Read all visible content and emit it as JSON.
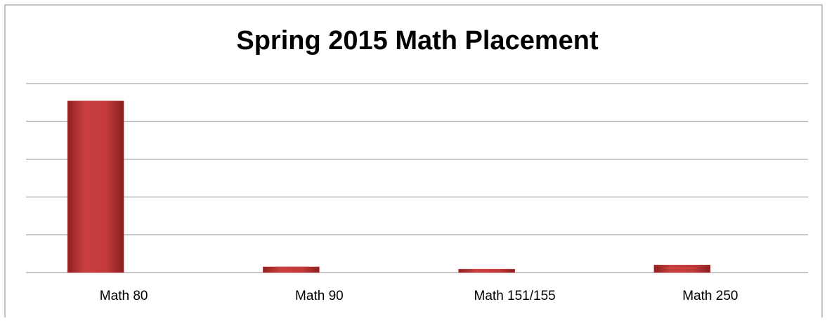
{
  "chart_data": {
    "type": "bar",
    "title": "Spring 2015 Math Placement",
    "categories": [
      "Math 80",
      "Math 90",
      "Math 151/155",
      "Math 250"
    ],
    "values": [
      4.54,
      0.15,
      0.09,
      0.2
    ],
    "color": "#c0393a",
    "ylim": [
      0,
      5
    ],
    "yticks": [
      0,
      1,
      2,
      3,
      4,
      5
    ],
    "grid": true
  }
}
